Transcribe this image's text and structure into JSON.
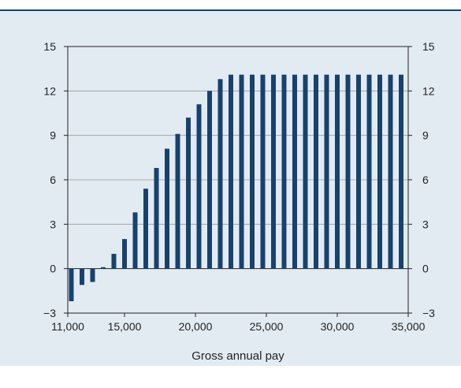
{
  "chart_data": {
    "type": "bar",
    "title": "",
    "xlabel": "Gross annual pay",
    "ylabel": "",
    "xlim": [
      11000,
      35000
    ],
    "ylim": [
      -3,
      15
    ],
    "x_ticks": [
      11000,
      15000,
      20000,
      25000,
      30000,
      35000
    ],
    "x_tick_labels": [
      "11,000",
      "15,000",
      "20,000",
      "25,000",
      "30,000",
      "35,000"
    ],
    "y_ticks": [
      -3,
      0,
      3,
      6,
      9,
      12,
      15
    ],
    "y_tick_labels": [
      "−3",
      "0",
      "3",
      "6",
      "9",
      "12",
      "15"
    ],
    "y_axis_both_sides": true,
    "grid": "horizontal",
    "legend": "none",
    "bar_color": "#17426f",
    "x": [
      11250,
      12000,
      12750,
      13500,
      14250,
      15000,
      15750,
      16500,
      17250,
      18000,
      18750,
      19500,
      20250,
      21000,
      21750,
      22500,
      23250,
      24000,
      24750,
      25500,
      26250,
      27000,
      27750,
      28500,
      29250,
      30000,
      30750,
      31500,
      32250,
      33000,
      33750,
      34500
    ],
    "values": [
      -2.2,
      -1.1,
      -0.9,
      0.1,
      1.0,
      2.0,
      3.8,
      5.4,
      6.8,
      8.1,
      9.1,
      10.2,
      11.1,
      12.0,
      12.8,
      13.1,
      13.1,
      13.1,
      13.1,
      13.1,
      13.1,
      13.1,
      13.1,
      13.1,
      13.1,
      13.1,
      13.1,
      13.1,
      13.1,
      13.1,
      13.1,
      13.1
    ]
  },
  "colors": {
    "panel_background": "#e3ebf2",
    "accent_rule": "#17426f",
    "gridline": "#9a9a9a",
    "axis": "#222222"
  }
}
